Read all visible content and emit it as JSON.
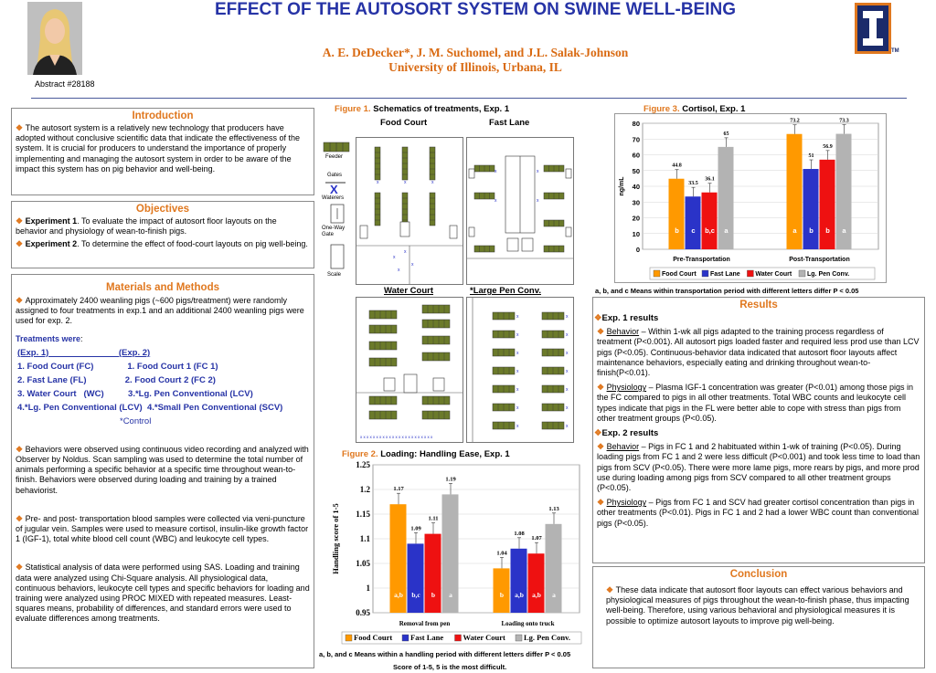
{
  "header": {
    "title": "EFFECT OF THE AUTOSORT SYSTEM ON SWINE WELL-BEING",
    "authors": "A. E. DeDecker*, J. M. Suchomel, and J.L. Salak-Johnson",
    "affiliation": "University of Illinois, Urbana, IL",
    "abstract": "Abstract #28188",
    "logo_tm": "TM"
  },
  "intro": {
    "heading": "Introduction",
    "text": "The autosort system is a relatively new technology that producers have adopted without conclusive scientific data that indicate the effectiveness of the system. It is crucial for producers to understand the importance of properly implementing and managing the autosort system in order to be aware of the impact this system has on pig behavior and well-being."
  },
  "objectives": {
    "heading": "Objectives",
    "exp1_label": "Experiment 1",
    "exp1_text": ".  To evaluate the impact of autosort floor layouts on the behavior and physiology of wean-to-finish pigs.",
    "exp2_label": "Experiment 2",
    "exp2_text": ".  To determine the effect of food-court layouts on pig well-being."
  },
  "methods": {
    "heading": "Materials and Methods",
    "p1": "Approximately 2400 weanling pigs (~600 pigs/treatment) were randomly assigned to four treatments in exp.1 and an additional 2400 weanling pigs were used for exp. 2.",
    "treatments_label": "Treatments were",
    "treat_lines": [
      "(Exp. 1)                             (Exp. 2)",
      "1. Food Court (FC)              1. Food Court 1 (FC 1)",
      "2. Fast Lane (FL)                2. Food Court 2 (FC 2)",
      "3. Water Court   (WC)          3.*Lg. Pen Conventional (LCV)",
      "4.*Lg. Pen Conventional (LCV)  4.*Small Pen Conventional (SCV)"
    ],
    "control": "*Control",
    "p2": "Behaviors were observed using continuous video recording and analyzed with Observer by Noldus. Scan sampling was used to determine the total number of animals performing a specific behavior at a specific time throughout wean-to-finish. Behaviors were observed during loading and training by a trained behaviorist.",
    "p3": "Pre- and post- transportation blood samples were collected via veni-puncture of  jugular vein. Samples were used to measure cortisol, insulin-like growth factor 1 (IGF-1), total white blood cell count (WBC) and leukocyte cell types.",
    "p4": "Statistical analysis of data were performed using SAS. Loading and training data were analyzed using Chi-Square analysis. All physiological data, continuous behaviors, leukocyte cell types and specific behaviors for loading and training were analyzed using PROC MIXED with repeated measures.  Least-squares means, probability of differences, and standard errors were used to evaluate differences among treatments."
  },
  "figure1": {
    "caption_num": "Figure 1.",
    "caption_text": " Schematics of treatments, Exp. 1",
    "food_court": "Food Court",
    "fast_lane": "Fast Lane",
    "water_court": "Water Court",
    "large_pen": "*Large Pen Conv.",
    "key_feeder": "Feeder",
    "key_gates": "Gates",
    "key_waterers": "Waterers",
    "key_oneway": "One-Way Gate",
    "key_scale": "Scale"
  },
  "figure2": {
    "caption_num": "Figure 2.",
    "caption_text": "  Loading: Handling Ease,  Exp. 1",
    "footnote1": "a, b, and c  Means within a handling period with different letters differ P < 0.05",
    "footnote2": "Score of 1-5, 5 is the most difficult."
  },
  "figure3": {
    "caption_num": "Figure 3.",
    "caption_text": " Cortisol, Exp. 1",
    "footnote": "a, b, and c  Means within transportation period with different letters differ P < 0.05"
  },
  "results": {
    "heading": "Results",
    "exp1": "Exp. 1 results",
    "behavior_label": "Behavior",
    "exp1_behavior": " – Within 1-wk all pigs adapted to the training process regardless of treatment (P<0.001). All autosort pigs loaded faster and required less prod use than LCV pigs (P<0.05). Continuous-behavior data indicated that autosort floor layouts affect maintenance behaviors, especially eating and drinking throughout wean-to-finish(P<0.01).",
    "physiology_label": "Physiology",
    "exp1_physiology": " – Plasma IGF-1 concentration was greater (P<0.01) among those pigs in the FC compared to pigs in all other treatments. Total WBC counts and leukocyte cell types indicate that pigs in the FL were better able to cope with stress than pigs from other treatment groups (P<0.05).",
    "exp2": "Exp. 2 results",
    "exp2_behavior": " – Pigs in FC 1 and 2 habituated within 1-wk of training (P<0.05). During loading pigs from FC 1 and 2 were less difficult (P<0.001) and took less time to load than pigs from SCV (P<0.05). There were more lame pigs, more rears by pigs, and more prod use during loading among pigs from SCV compared to all other treatment groups (P<0.05).",
    "exp2_physiology": " – Pigs from FC 1 and SCV had greater cortisol concentration than pigs in other treatments (P<0.01). Pigs in FC 1 and 2 had a lower WBC count than conventional pigs (P<0.05)."
  },
  "conclusion": {
    "heading": "Conclusion",
    "text": "These data indicate that autosort floor layouts can effect various behaviors and physiological measures of pigs throughout the wean-to-finish phase, thus impacting well-being. Therefore, using various behavioral and physiological measures it is possible to optimize autosort layouts to improve pig well-being."
  },
  "colors": {
    "food_court": "#ff9900",
    "fast_lane": "#2a33c8",
    "water_court": "#ee1111",
    "lg_pen": "#b3b3b3"
  },
  "chart_data": [
    {
      "type": "bar",
      "title": "Loading: Handling Ease,  Exp. 1",
      "ylabel": "Handling score of 1-5",
      "categories": [
        "Removal from pen",
        "Loading onto truck"
      ],
      "ylim": [
        0.95,
        1.25
      ],
      "yticks": [
        "0.95",
        "1",
        "1.05",
        "1.1",
        "1.15",
        "1.2",
        "1.25"
      ],
      "series": [
        {
          "name": "Food Court",
          "values": [
            1.17,
            1.04
          ],
          "labels": [
            "1.17",
            "1.04"
          ],
          "letters": [
            "a,b",
            "b"
          ]
        },
        {
          "name": "Fast Lane",
          "values": [
            1.09,
            1.08
          ],
          "labels": [
            "1.09",
            "1.08"
          ],
          "letters": [
            "b,c",
            "a,b"
          ]
        },
        {
          "name": "Water Court",
          "values": [
            1.11,
            1.07
          ],
          "labels": [
            "1.11",
            "1.07"
          ],
          "letters": [
            "b",
            "a,b"
          ]
        },
        {
          "name": "Lg. Pen Conv.",
          "values": [
            1.19,
            1.13
          ],
          "labels": [
            "1.19",
            "1.13"
          ],
          "letters": [
            "a",
            "a"
          ]
        }
      ]
    },
    {
      "type": "bar",
      "title": "Cortisol, Exp. 1",
      "ylabel": "ng/mL",
      "categories": [
        "Pre-Transportation",
        "Post-Transportation"
      ],
      "ylim": [
        0,
        80
      ],
      "yticks": [
        "0",
        "10",
        "20",
        "30",
        "40",
        "50",
        "60",
        "70",
        "80"
      ],
      "series": [
        {
          "name": "Food Court",
          "values": [
            44.8,
            73.2
          ],
          "labels": [
            "44.8",
            "73.2"
          ],
          "letters": [
            "b",
            "a"
          ]
        },
        {
          "name": "Fast Lane",
          "values": [
            33.5,
            51
          ],
          "labels": [
            "33.5",
            "51"
          ],
          "letters": [
            "c",
            "b"
          ]
        },
        {
          "name": "Water Court",
          "values": [
            36.1,
            56.9
          ],
          "labels": [
            "36.1",
            "56.9"
          ],
          "letters": [
            "b,c",
            "b"
          ]
        },
        {
          "name": "Lg. Pen Conv.",
          "values": [
            65,
            73.3
          ],
          "labels": [
            "65",
            "73.3"
          ],
          "letters": [
            "a",
            "a"
          ]
        }
      ]
    }
  ]
}
